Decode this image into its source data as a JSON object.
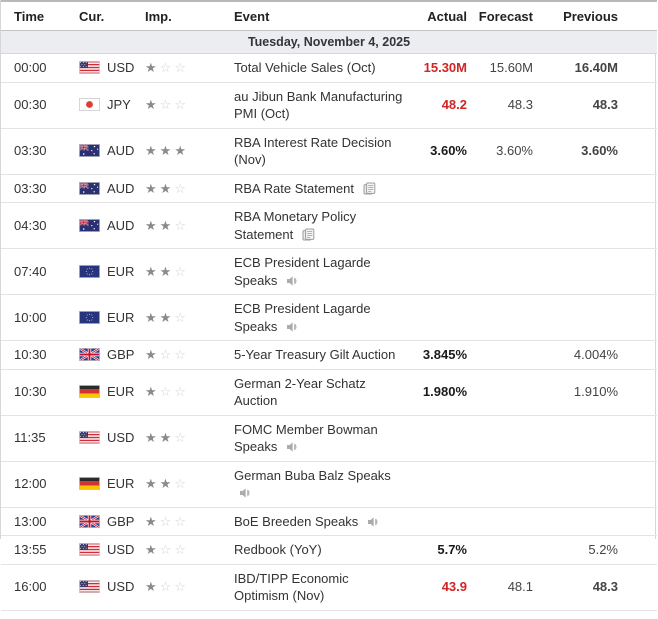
{
  "colors": {
    "actual_negative_red": "#cf2626",
    "value_bold": "#1a1a1a",
    "value_regular": "#444444",
    "date_row_bg": "#ebedf0",
    "star_filled": "#8a8a8a",
    "star_empty": "#d2d2d2",
    "row_border": "#e3e3e3"
  },
  "table": {
    "columns": {
      "time": "Time",
      "cur": "Cur.",
      "imp": "Imp.",
      "event": "Event",
      "actual": "Actual",
      "forecast": "Forecast",
      "previous": "Previous"
    },
    "date_header": "Tuesday, November 4, 2025",
    "rows": [
      {
        "time": "00:00",
        "flag": "us",
        "currency": "USD",
        "importance": 1,
        "event": "Total Vehicle Sales (Oct)",
        "event_icon": null,
        "actual": "15.30M",
        "actual_style": "red",
        "forecast": "15.60M",
        "previous": "16.40M",
        "previous_bold": true
      },
      {
        "time": "00:30",
        "flag": "jp",
        "currency": "JPY",
        "importance": 1,
        "event": "au Jibun Bank Manufacturing PMI (Oct)",
        "event_icon": null,
        "actual": "48.2",
        "actual_style": "red",
        "forecast": "48.3",
        "previous": "48.3",
        "previous_bold": true
      },
      {
        "time": "03:30",
        "flag": "au",
        "currency": "AUD",
        "importance": 3,
        "event": "RBA Interest Rate Decision (Nov)",
        "event_icon": null,
        "actual": "3.60%",
        "actual_style": "bold",
        "forecast": "3.60%",
        "previous": "3.60%",
        "previous_bold": true
      },
      {
        "time": "03:30",
        "flag": "au",
        "currency": "AUD",
        "importance": 2,
        "event": "RBA Rate Statement",
        "event_icon": "report",
        "actual": "",
        "actual_style": null,
        "forecast": "",
        "previous": "",
        "previous_bold": false
      },
      {
        "time": "04:30",
        "flag": "au",
        "currency": "AUD",
        "importance": 2,
        "event": "RBA Monetary Policy Statement",
        "event_icon": "report",
        "actual": "",
        "actual_style": null,
        "forecast": "",
        "previous": "",
        "previous_bold": false
      },
      {
        "time": "07:40",
        "flag": "eu",
        "currency": "EUR",
        "importance": 2,
        "event": "ECB President Lagarde Speaks",
        "event_icon": "speech",
        "actual": "",
        "actual_style": null,
        "forecast": "",
        "previous": "",
        "previous_bold": false
      },
      {
        "time": "10:00",
        "flag": "eu",
        "currency": "EUR",
        "importance": 2,
        "event": "ECB President Lagarde Speaks",
        "event_icon": "speech",
        "actual": "",
        "actual_style": null,
        "forecast": "",
        "previous": "",
        "previous_bold": false
      },
      {
        "time": "10:30",
        "flag": "gb",
        "currency": "GBP",
        "importance": 1,
        "event": "5-Year Treasury Gilt Auction",
        "event_icon": null,
        "actual": "3.845%",
        "actual_style": "bold",
        "forecast": "",
        "previous": "4.004%",
        "previous_bold": false
      },
      {
        "time": "10:30",
        "flag": "de",
        "currency": "EUR",
        "importance": 1,
        "event": "German 2-Year Schatz Auction",
        "event_icon": null,
        "actual": "1.980%",
        "actual_style": "bold",
        "forecast": "",
        "previous": "1.910%",
        "previous_bold": false
      },
      {
        "time": "11:35",
        "flag": "us",
        "currency": "USD",
        "importance": 2,
        "event": "FOMC Member Bowman Speaks",
        "event_icon": "speech",
        "actual": "",
        "actual_style": null,
        "forecast": "",
        "previous": "",
        "previous_bold": false
      },
      {
        "time": "12:00",
        "flag": "de",
        "currency": "EUR",
        "importance": 2,
        "event": "German Buba Balz Speaks",
        "event_icon": "speech",
        "actual": "",
        "actual_style": null,
        "forecast": "",
        "previous": "",
        "previous_bold": false
      },
      {
        "time": "13:00",
        "flag": "gb",
        "currency": "GBP",
        "importance": 1,
        "event": "BoE Breeden Speaks",
        "event_icon": "speech",
        "actual": "",
        "actual_style": null,
        "forecast": "",
        "previous": "",
        "previous_bold": false
      },
      {
        "time": "13:55",
        "flag": "us",
        "currency": "USD",
        "importance": 1,
        "event": "Redbook (YoY)",
        "event_icon": null,
        "actual": "5.7%",
        "actual_style": "bold",
        "forecast": "",
        "previous": "5.2%",
        "previous_bold": false
      },
      {
        "time": "16:00",
        "flag": "us",
        "currency": "USD",
        "importance": 1,
        "event": "IBD/TIPP Economic Optimism (Nov)",
        "event_icon": null,
        "actual": "43.9",
        "actual_style": "red",
        "forecast": "48.1",
        "previous": "48.3",
        "previous_bold": true
      }
    ]
  }
}
